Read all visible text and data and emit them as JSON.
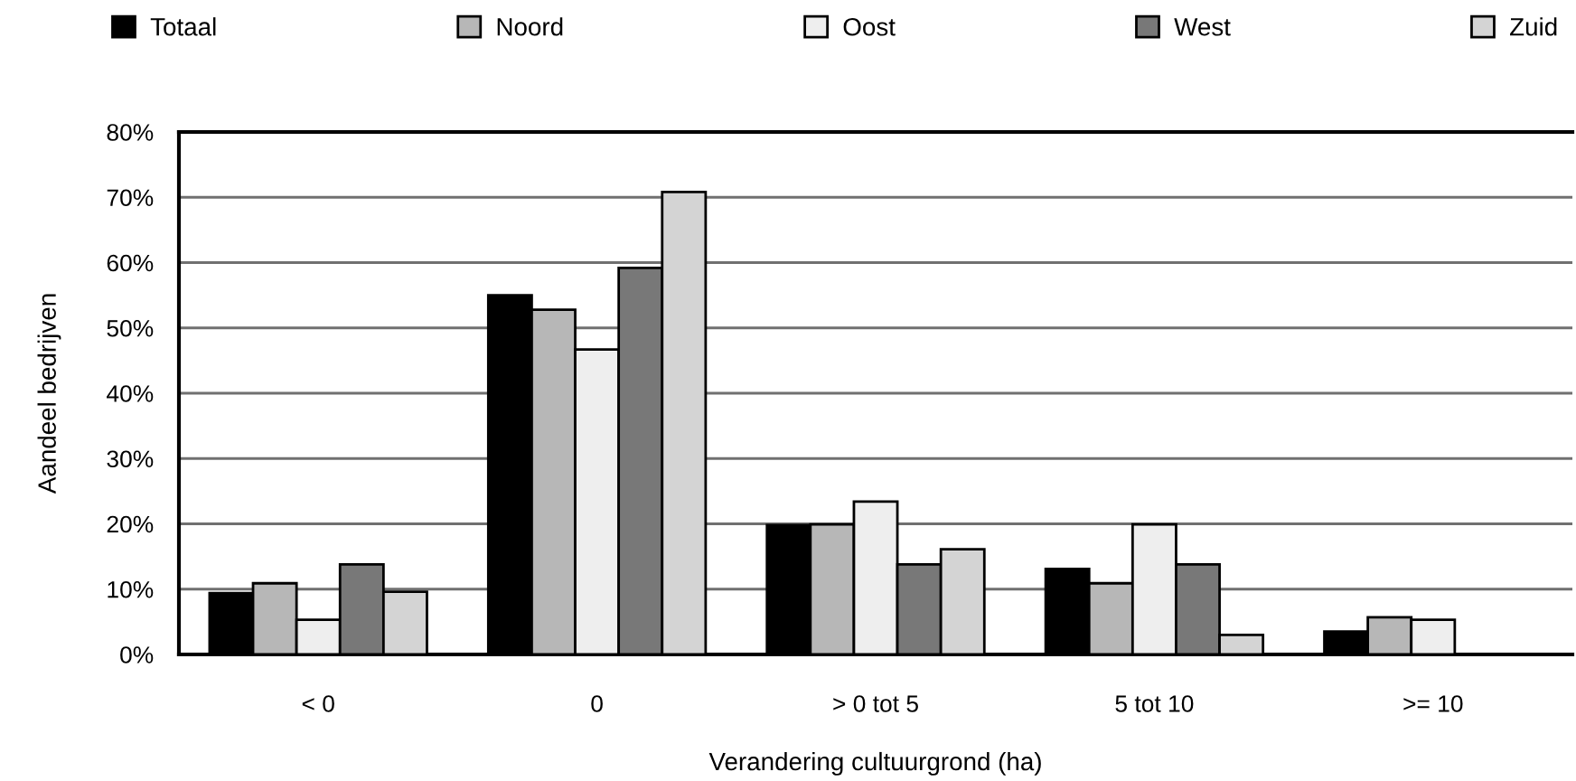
{
  "chart_data": {
    "type": "bar",
    "xlabel": "Verandering cultuurgrond (ha)",
    "ylabel": "Aandeel bedrijven",
    "categories": [
      "< 0",
      "0",
      "> 0 tot 5",
      "5 tot 10",
      ">= 10"
    ],
    "series": [
      {
        "name": "Totaal",
        "color": "#000000",
        "values": [
          9.4,
          55.0,
          19.8,
          13.1,
          3.5
        ]
      },
      {
        "name": "Noord",
        "color": "#b7b7b7",
        "values": [
          10.9,
          52.8,
          19.9,
          10.9,
          5.7
        ]
      },
      {
        "name": "Oost",
        "color": "#eeeeee",
        "values": [
          5.3,
          46.7,
          23.4,
          19.9,
          5.3
        ]
      },
      {
        "name": "West",
        "color": "#787878",
        "values": [
          13.8,
          59.2,
          13.8,
          13.8,
          null
        ]
      },
      {
        "name": "Zuid",
        "color": "#d4d4d4",
        "values": [
          9.6,
          70.8,
          16.1,
          3.0,
          null
        ]
      }
    ],
    "ylim": [
      0,
      80
    ],
    "yticks": [
      {
        "value": 0,
        "label": "0%"
      },
      {
        "value": 10,
        "label": "10%"
      },
      {
        "value": 20,
        "label": "20%"
      },
      {
        "value": 30,
        "label": "30%"
      },
      {
        "value": 40,
        "label": "40%"
      },
      {
        "value": 50,
        "label": "50%"
      },
      {
        "value": 60,
        "label": "60%"
      },
      {
        "value": 70,
        "label": "70%"
      },
      {
        "value": 80,
        "label": "80%"
      }
    ],
    "grid": "y",
    "legend": "top"
  }
}
